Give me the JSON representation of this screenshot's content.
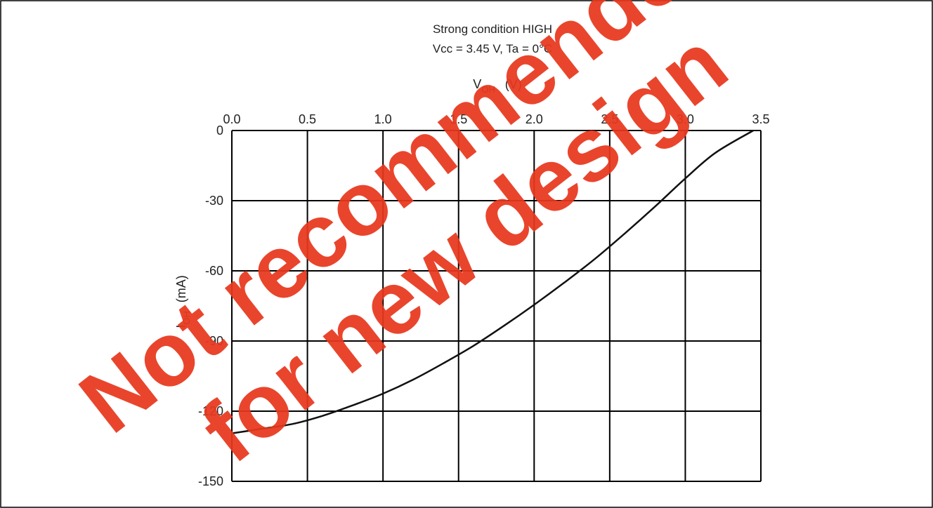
{
  "chart_data": {
    "type": "line",
    "title": "Strong condition HIGH",
    "subtitle": "Vcc = 3.45 V, Ta = 0°C",
    "xlabel": {
      "main": "V",
      "sub": "OH",
      "unit": "(V)"
    },
    "ylabel": {
      "main": "I",
      "sub": "OH",
      "unit": "(mA)"
    },
    "x_axis_position": "top",
    "xlim": [
      0,
      3.5
    ],
    "ylim": [
      -150,
      0
    ],
    "xticks": [
      "0.0",
      "0.5",
      "1.0",
      "1.5",
      "2.0",
      "2.5",
      "3.0",
      "3.5"
    ],
    "yticks": [
      "0",
      "-30",
      "-60",
      "-90",
      "-120",
      "-150"
    ],
    "grid": true,
    "series": [
      {
        "color": "#111111",
        "x": [
          0.0,
          0.2,
          0.4,
          0.6,
          0.8,
          1.0,
          1.2,
          1.4,
          1.6,
          1.8,
          2.0,
          2.2,
          2.4,
          2.6,
          2.8,
          3.0,
          3.2,
          3.45
        ],
        "y": [
          -129.5,
          -127.5,
          -125.5,
          -122,
          -117.5,
          -112.5,
          -106.5,
          -99.5,
          -92,
          -83.5,
          -74.5,
          -65,
          -55,
          -44,
          -32.5,
          -20.5,
          -9.5,
          0
        ]
      }
    ]
  },
  "watermark": {
    "line1": "Not recommended",
    "line2": "for new design",
    "color": "#e8381e"
  }
}
